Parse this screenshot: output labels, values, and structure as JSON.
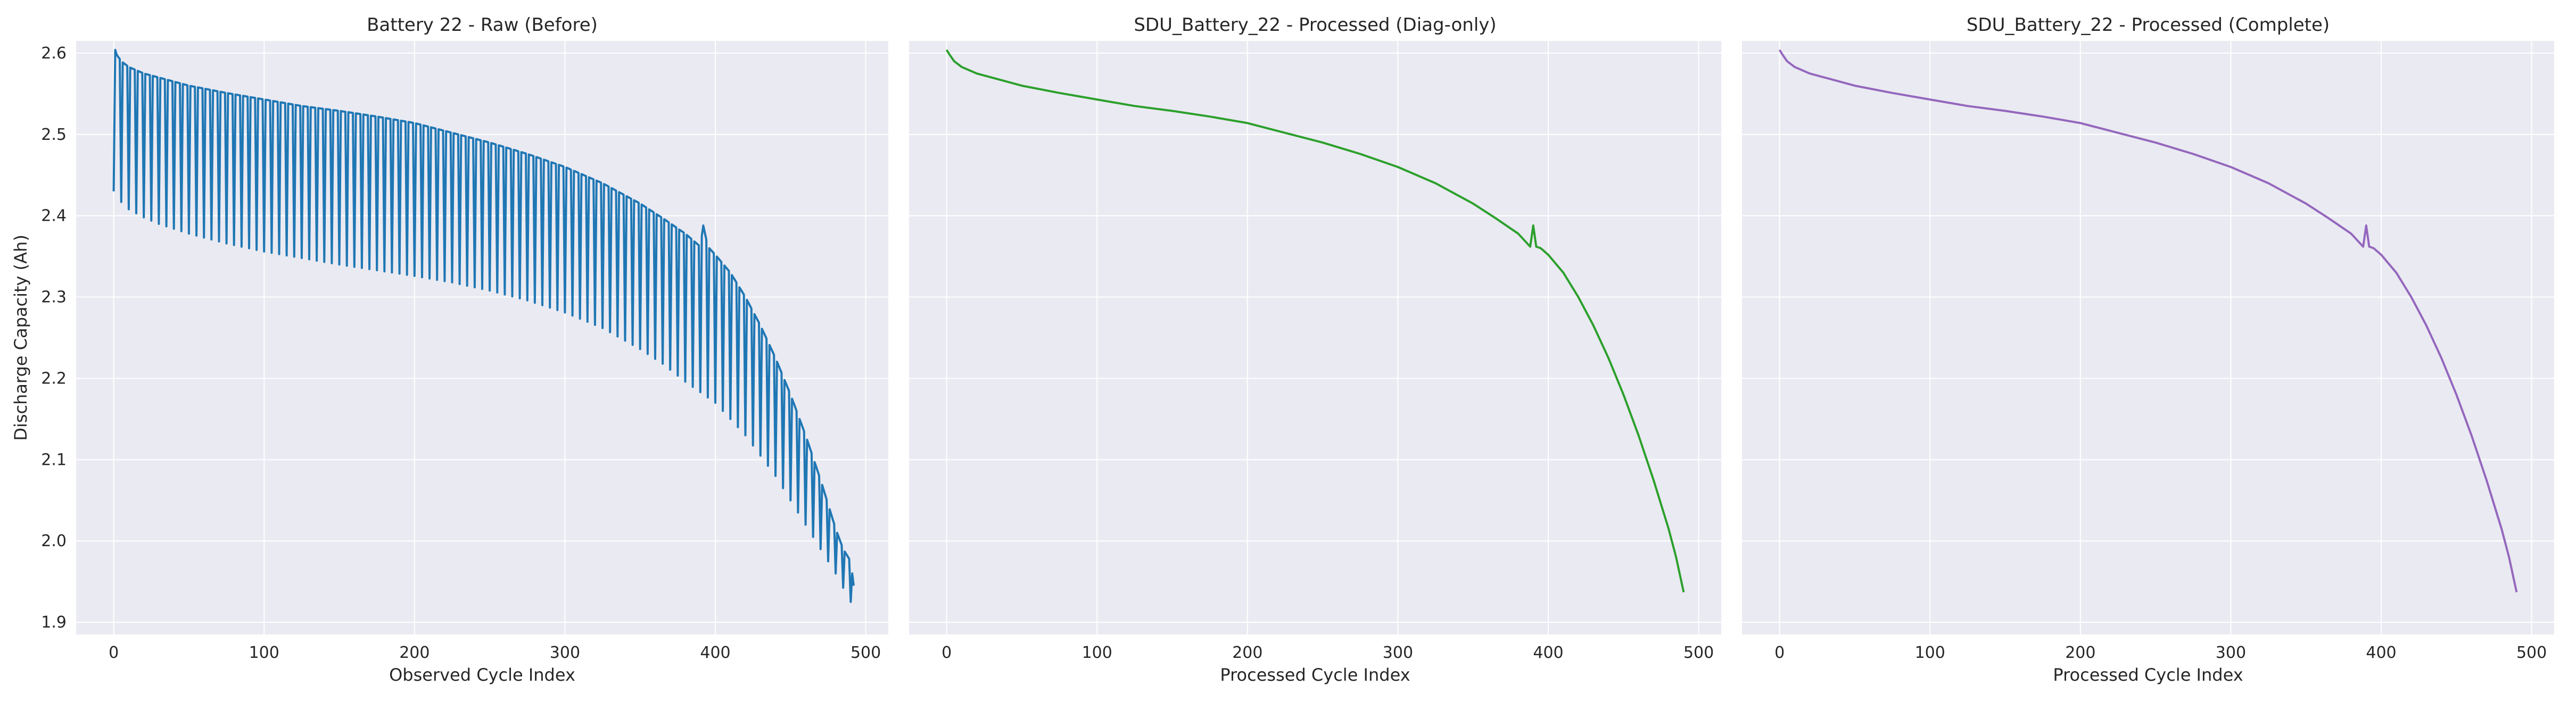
{
  "figure": {
    "panels": [
      {
        "title": "Battery 22 - Raw (Before)",
        "xlabel": "Observed Cycle Index",
        "ylabel": "Discharge Capacity (Ah)"
      },
      {
        "title": "SDU_Battery_22 - Processed (Diag-only)",
        "xlabel": "Processed Cycle Index",
        "ylabel": ""
      },
      {
        "title": "SDU_Battery_22 - Processed (Complete)",
        "xlabel": "Processed Cycle Index",
        "ylabel": ""
      }
    ]
  },
  "chart_data": [
    {
      "type": "line",
      "title": "Battery 22 - Raw (Before)",
      "xlabel": "Observed Cycle Index",
      "ylabel": "Discharge Capacity (Ah)",
      "xlim": [
        -25,
        515
      ],
      "ylim": [
        1.885,
        2.615
      ],
      "xticks": [
        0,
        100,
        200,
        300,
        400,
        500
      ],
      "yticks": [
        1.9,
        2.0,
        2.1,
        2.2,
        2.3,
        2.4,
        2.5,
        2.6
      ],
      "grid": true,
      "color": "#1f77b4",
      "series": [
        {
          "x": [
            0,
            2,
            5,
            10,
            20,
            30,
            50,
            75,
            100,
            125,
            150,
            175,
            200,
            225,
            250,
            275,
            300,
            325,
            350,
            365,
            380,
            390,
            392,
            395,
            400,
            410,
            420,
            430,
            440,
            450,
            460,
            470,
            480,
            485,
            490,
            492
          ],
          "y": [
            2.604,
            2.598,
            2.59,
            2.583,
            2.575,
            2.57,
            2.56,
            2.551,
            2.543,
            2.535,
            2.529,
            2.522,
            2.514,
            2.502,
            2.49,
            2.476,
            2.46,
            2.44,
            2.415,
            2.397,
            2.378,
            2.362,
            2.388,
            2.362,
            2.352,
            2.33,
            2.3,
            2.265,
            2.225,
            2.18,
            2.13,
            2.075,
            2.015,
            1.99,
            1.975,
            1.945
          ]
        },
        {
          "x": [
            0,
            5,
            10,
            20,
            30,
            50,
            75,
            100,
            125,
            150,
            175,
            200,
            225,
            250,
            275,
            300,
            325,
            350,
            365,
            380,
            400,
            420,
            440,
            460,
            480,
            492
          ],
          "y": [
            2.43,
            2.417,
            2.408,
            2.398,
            2.39,
            2.378,
            2.366,
            2.356,
            2.348,
            2.34,
            2.333,
            2.326,
            2.318,
            2.308,
            2.296,
            2.281,
            2.262,
            2.236,
            2.218,
            2.196,
            2.17,
            2.13,
            2.08,
            2.02,
            1.96,
            1.918
          ]
        }
      ]
    },
    {
      "type": "line",
      "title": "SDU_Battery_22 - Processed (Diag-only)",
      "xlabel": "Processed Cycle Index",
      "ylabel": "",
      "xlim": [
        -25,
        515
      ],
      "ylim": [
        1.885,
        2.615
      ],
      "xticks": [
        0,
        100,
        200,
        300,
        400,
        500
      ],
      "yticks": [
        1.9,
        2.0,
        2.1,
        2.2,
        2.3,
        2.4,
        2.5,
        2.6
      ],
      "grid": true,
      "color": "#2ca02c",
      "series": [
        {
          "x": [
            0,
            2,
            5,
            10,
            20,
            30,
            50,
            75,
            100,
            125,
            150,
            175,
            200,
            225,
            250,
            275,
            300,
            325,
            350,
            365,
            380,
            388,
            390,
            392,
            395,
            400,
            410,
            420,
            430,
            440,
            450,
            460,
            470,
            480,
            485,
            490
          ],
          "y": [
            2.604,
            2.598,
            2.59,
            2.583,
            2.575,
            2.57,
            2.56,
            2.551,
            2.543,
            2.535,
            2.529,
            2.522,
            2.514,
            2.502,
            2.49,
            2.476,
            2.46,
            2.44,
            2.415,
            2.397,
            2.378,
            2.362,
            2.388,
            2.362,
            2.36,
            2.352,
            2.33,
            2.3,
            2.265,
            2.225,
            2.18,
            2.13,
            2.075,
            2.015,
            1.98,
            1.937
          ]
        }
      ]
    },
    {
      "type": "line",
      "title": "SDU_Battery_22 - Processed (Complete)",
      "xlabel": "Processed Cycle Index",
      "ylabel": "",
      "xlim": [
        -25,
        515
      ],
      "ylim": [
        1.885,
        2.615
      ],
      "xticks": [
        0,
        100,
        200,
        300,
        400,
        500
      ],
      "yticks": [
        1.9,
        2.0,
        2.1,
        2.2,
        2.3,
        2.4,
        2.5,
        2.6
      ],
      "grid": true,
      "color": "#9467bd",
      "series": [
        {
          "x": [
            0,
            2,
            5,
            10,
            20,
            30,
            50,
            75,
            100,
            125,
            150,
            175,
            200,
            225,
            250,
            275,
            300,
            325,
            350,
            365,
            380,
            388,
            390,
            392,
            395,
            400,
            410,
            420,
            430,
            440,
            450,
            460,
            470,
            480,
            485,
            490
          ],
          "y": [
            2.604,
            2.598,
            2.59,
            2.583,
            2.575,
            2.57,
            2.56,
            2.551,
            2.543,
            2.535,
            2.529,
            2.522,
            2.514,
            2.502,
            2.49,
            2.476,
            2.46,
            2.44,
            2.415,
            2.397,
            2.378,
            2.362,
            2.388,
            2.362,
            2.36,
            2.352,
            2.33,
            2.3,
            2.265,
            2.225,
            2.18,
            2.13,
            2.075,
            2.015,
            1.98,
            1.937
          ]
        }
      ]
    }
  ]
}
